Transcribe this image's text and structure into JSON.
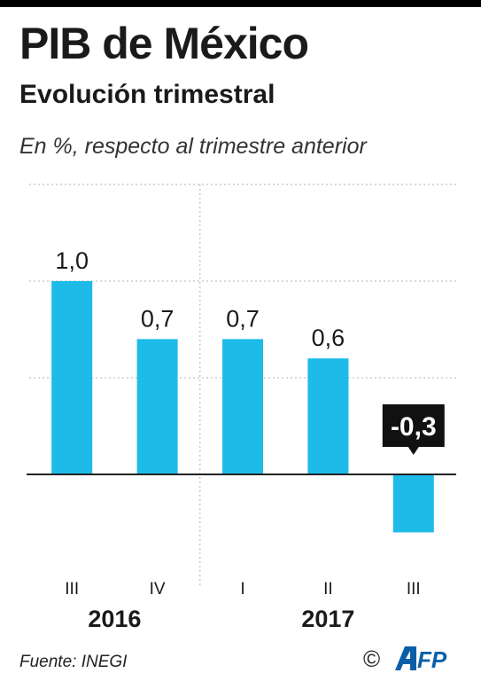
{
  "header": {
    "title": "PIB de México",
    "subtitle": "Evolución trimestral",
    "unit_note": "En %, respecto al trimestre anterior"
  },
  "footer": {
    "source": "Fuente: INEGI",
    "copyright": "©",
    "logo_text": "AFP"
  },
  "colors": {
    "bar": "#1ebbe9",
    "callout_bg": "#111111",
    "text": "#1a1a1a",
    "grid": "#b0b0b0"
  },
  "chart_data": {
    "type": "bar",
    "categories": [
      "III",
      "IV",
      "I",
      "II",
      "III"
    ],
    "year_groups": [
      {
        "label": "2016",
        "span": [
          0,
          1
        ]
      },
      {
        "label": "2017",
        "span": [
          2,
          4
        ]
      }
    ],
    "values": [
      1.0,
      0.7,
      0.7,
      0.6,
      -0.3
    ],
    "labels": [
      "1,0",
      "0,7",
      "0,7",
      "0,6",
      "-0,3"
    ],
    "highlight_index": 4,
    "ylim": [
      -0.45,
      1.5
    ],
    "gridlines": [
      0.5,
      1.0,
      1.5
    ],
    "grid": true,
    "xlabel": "",
    "ylabel": ""
  }
}
